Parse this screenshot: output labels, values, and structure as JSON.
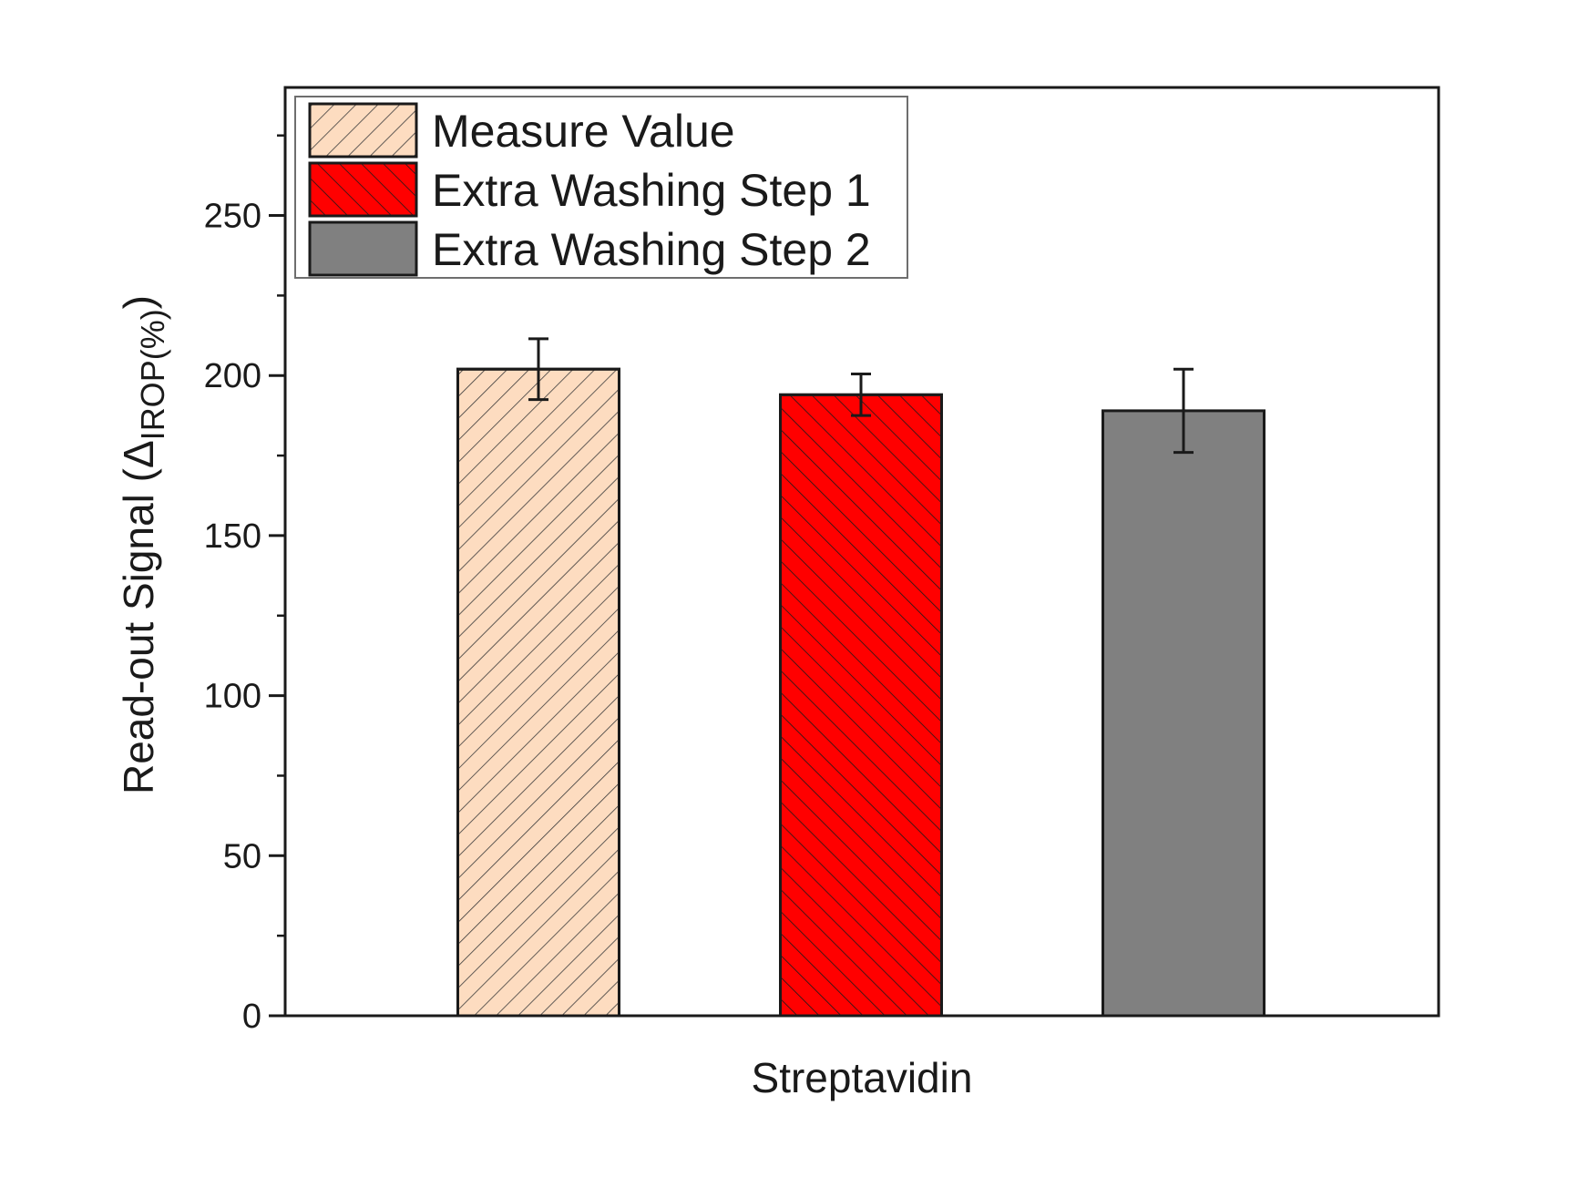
{
  "chart_data": {
    "type": "bar",
    "categories": [
      "Streptavidin"
    ],
    "xlabel": "Streptavidin",
    "ylabel": {
      "main": "Read-out Signal (",
      "symbol": "Δ",
      "subscript": "IROP(%)",
      "close": ")"
    },
    "ylim": [
      0,
      290
    ],
    "yticks": [
      0,
      50,
      100,
      150,
      200,
      250
    ],
    "yticks_minor": [
      25,
      75,
      125,
      175,
      225,
      275
    ],
    "grid": false,
    "legend_position": "top-left",
    "series": [
      {
        "name": "Measure Value",
        "values": [
          202
        ],
        "errors": [
          9.5
        ],
        "color": "#fddcc0",
        "hatch": "forward"
      },
      {
        "name": "Extra Washing Step 1",
        "values": [
          194
        ],
        "errors": [
          6.5
        ],
        "color": "#ff0000",
        "hatch": "back"
      },
      {
        "name": "Extra Washing Step 2",
        "values": [
          189
        ],
        "errors": [
          13
        ],
        "color": "#808080",
        "hatch": "none"
      }
    ]
  }
}
